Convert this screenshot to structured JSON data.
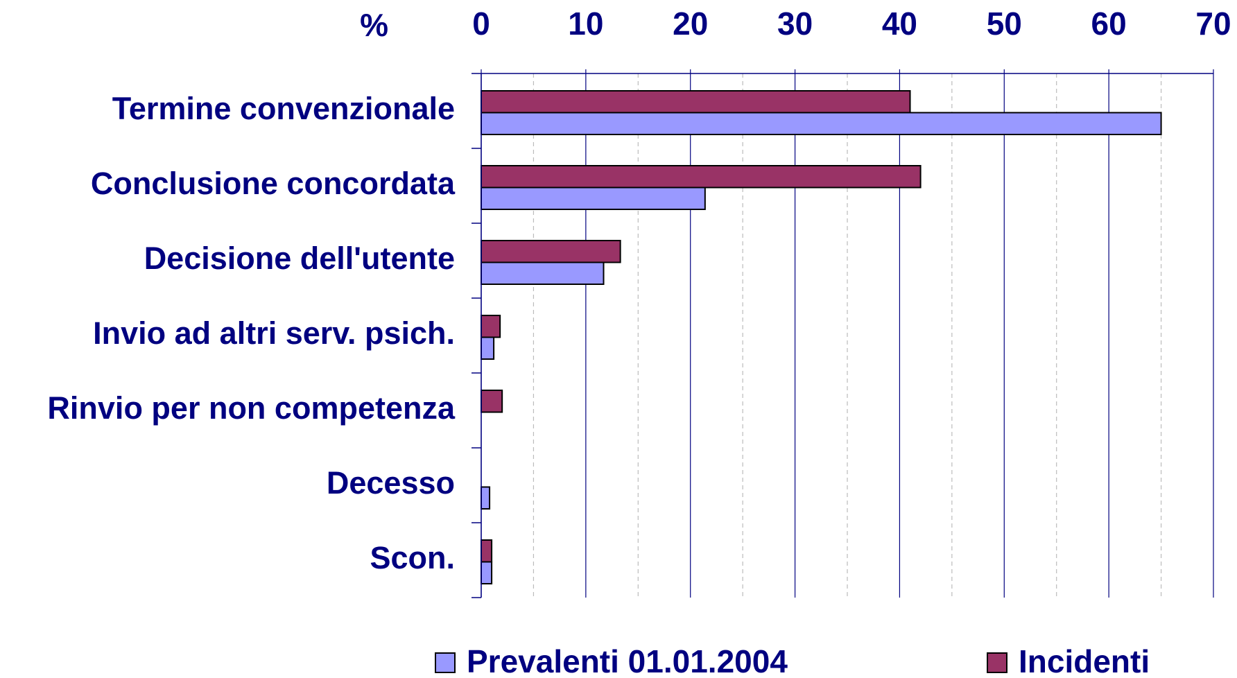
{
  "chart_data": {
    "type": "bar",
    "orientation": "horizontal",
    "x_label": "%",
    "categories": [
      "Termine convenzionale",
      "Conclusione concordata",
      "Decisione dell'utente",
      "Invio ad altri serv. psich.",
      "Rinvio per non competenza",
      "Decesso",
      "Scon."
    ],
    "series": [
      {
        "name": "Prevalenti 01.01.2004",
        "color": "#9999ff",
        "values": [
          65,
          21.4,
          11.7,
          1.2,
          null,
          0.8,
          1.0
        ]
      },
      {
        "name": "Incidenti",
        "color": "#993366",
        "values": [
          41,
          42,
          13.3,
          1.8,
          2.0,
          null,
          1.0
        ]
      }
    ],
    "xlim": [
      0,
      70
    ],
    "xticks": [
      0,
      10,
      20,
      30,
      40,
      50,
      60,
      70
    ],
    "minor_xticks": [
      5,
      15,
      25,
      35,
      45,
      55,
      65
    ],
    "grid": true,
    "legend": "bottom"
  }
}
